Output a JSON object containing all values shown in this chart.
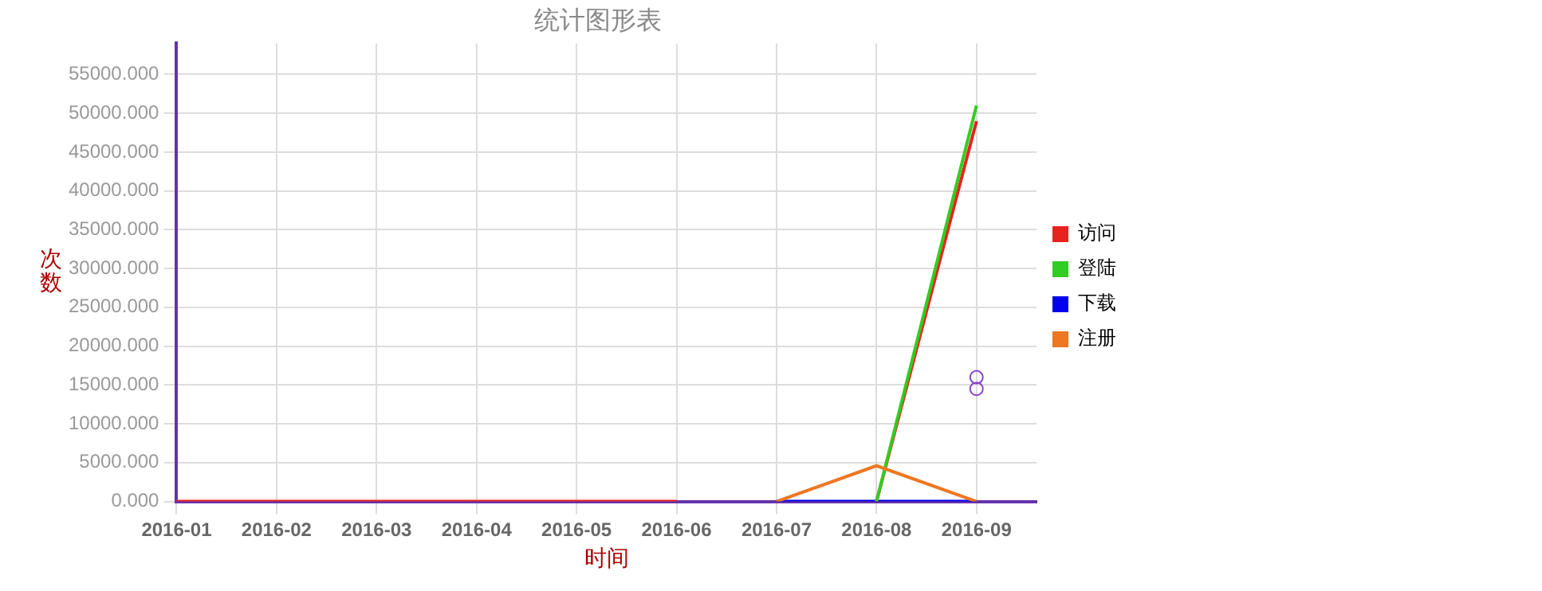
{
  "chart_data": {
    "type": "line",
    "title": "统计图形表",
    "xlabel": "时间",
    "ylabel": "次数",
    "categories": [
      "2016-01",
      "2016-02",
      "2016-03",
      "2016-04",
      "2016-05",
      "2016-06",
      "2016-07",
      "2016-08",
      "2016-09"
    ],
    "series": [
      {
        "name": "访问",
        "color": "#e8231f",
        "values": [
          0,
          0,
          0,
          0,
          0,
          0,
          null,
          0,
          49000
        ]
      },
      {
        "name": "登陆",
        "color": "#33cc22",
        "values": [
          null,
          null,
          null,
          null,
          null,
          null,
          null,
          0,
          51000
        ]
      },
      {
        "name": "下载",
        "color": "#0000ee",
        "values": [
          null,
          null,
          null,
          null,
          null,
          null,
          0,
          0,
          0
        ]
      },
      {
        "name": "注册",
        "color": "#ee7722",
        "values": [
          null,
          null,
          null,
          null,
          null,
          null,
          0,
          4600,
          0
        ]
      },
      {
        "type": "scatter",
        "marker": "circle",
        "color": "#8844cc",
        "values": [
          null,
          null,
          null,
          null,
          null,
          null,
          null,
          null,
          16000
        ]
      },
      {
        "type": "scatter",
        "marker": "circle",
        "color": "#8844cc",
        "values": [
          null,
          null,
          null,
          null,
          null,
          null,
          null,
          null,
          14500
        ]
      }
    ],
    "ylim": [
      0,
      59000
    ],
    "yticks": [
      {
        "value": 0,
        "label": "0.000"
      },
      {
        "value": 5000,
        "label": "5000.000"
      },
      {
        "value": 10000,
        "label": "10000.000"
      },
      {
        "value": 15000,
        "label": "15000.000"
      },
      {
        "value": 20000,
        "label": "20000.000"
      },
      {
        "value": 25000,
        "label": "25000.000"
      },
      {
        "value": 30000,
        "label": "30000.000"
      },
      {
        "value": 35000,
        "label": "35000.000"
      },
      {
        "value": 40000,
        "label": "40000.000"
      },
      {
        "value": 45000,
        "label": "45000.000"
      },
      {
        "value": 50000,
        "label": "50000.000"
      },
      {
        "value": 55000,
        "label": "55000.000"
      }
    ],
    "grid": true,
    "legend": "right",
    "marker": "none",
    "line_style": "solid"
  }
}
